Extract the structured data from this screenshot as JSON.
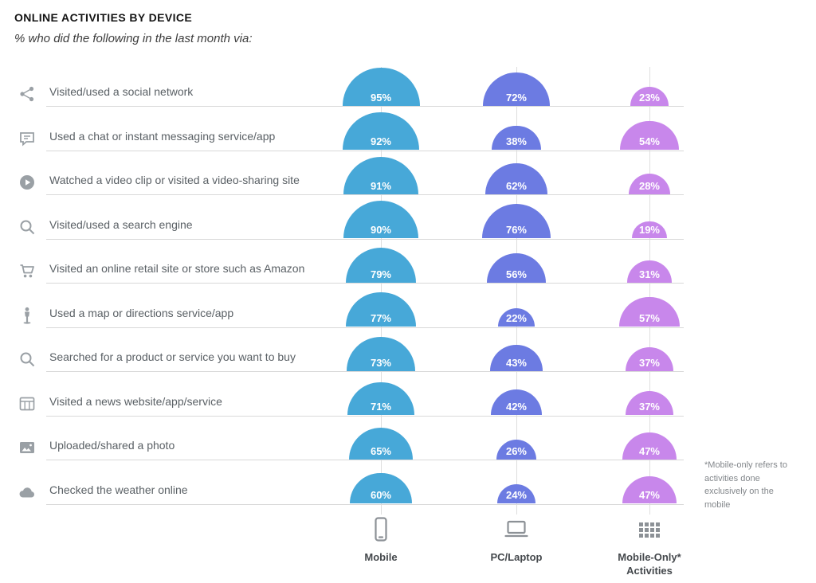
{
  "header": {
    "title": "ONLINE ACTIVITIES BY DEVICE",
    "subtitle": "% who did the following in the last month via:"
  },
  "footnote": "*Mobile-only refers to activities done exclusively on the mobile",
  "columns": [
    {
      "label": "Mobile",
      "icon": "mobile-phone-icon",
      "color": "#47A8D8"
    },
    {
      "label": "PC/Laptop",
      "icon": "laptop-icon",
      "color": "#6C7BE2"
    },
    {
      "label": "Mobile-Only* Activities",
      "icon": "grid-dots-icon",
      "color": "#C887EB"
    }
  ],
  "row_icons": [
    "share-icon",
    "chat-icon",
    "play-icon",
    "search-icon",
    "cart-icon",
    "map-person-icon",
    "search-icon",
    "news-icon",
    "photo-icon",
    "weather-icon"
  ],
  "chart_data": {
    "type": "proportional_semicircle",
    "title": "ONLINE ACTIVITIES BY DEVICE",
    "subtitle": "% who did the following in the last month via:",
    "unit": "percent",
    "value_range": [
      0,
      100
    ],
    "sizing": "semicircle area proportional to value",
    "categories": [
      "Visited/used a social network",
      "Used a chat or instant messaging service/app",
      "Watched a video clip or visited a video-sharing site",
      "Visited/used a search engine",
      "Visited an online retail site or store such as Amazon",
      "Used a map or directions service/app",
      "Searched for a product or service you want to buy",
      "Visited a news website/app/service",
      "Uploaded/shared a photo",
      "Checked the weather online"
    ],
    "series": [
      {
        "name": "Mobile",
        "color": "#47A8D8",
        "values": [
          95,
          92,
          91,
          90,
          79,
          77,
          73,
          71,
          65,
          60
        ]
      },
      {
        "name": "PC/Laptop",
        "color": "#6C7BE2",
        "values": [
          72,
          38,
          62,
          76,
          56,
          22,
          43,
          42,
          26,
          24
        ]
      },
      {
        "name": "Mobile-Only* Activities",
        "color": "#C887EB",
        "values": [
          23,
          54,
          28,
          19,
          31,
          57,
          37,
          37,
          47,
          47
        ]
      }
    ],
    "footnote": "*Mobile-only refers to activities done exclusively on the mobile"
  }
}
